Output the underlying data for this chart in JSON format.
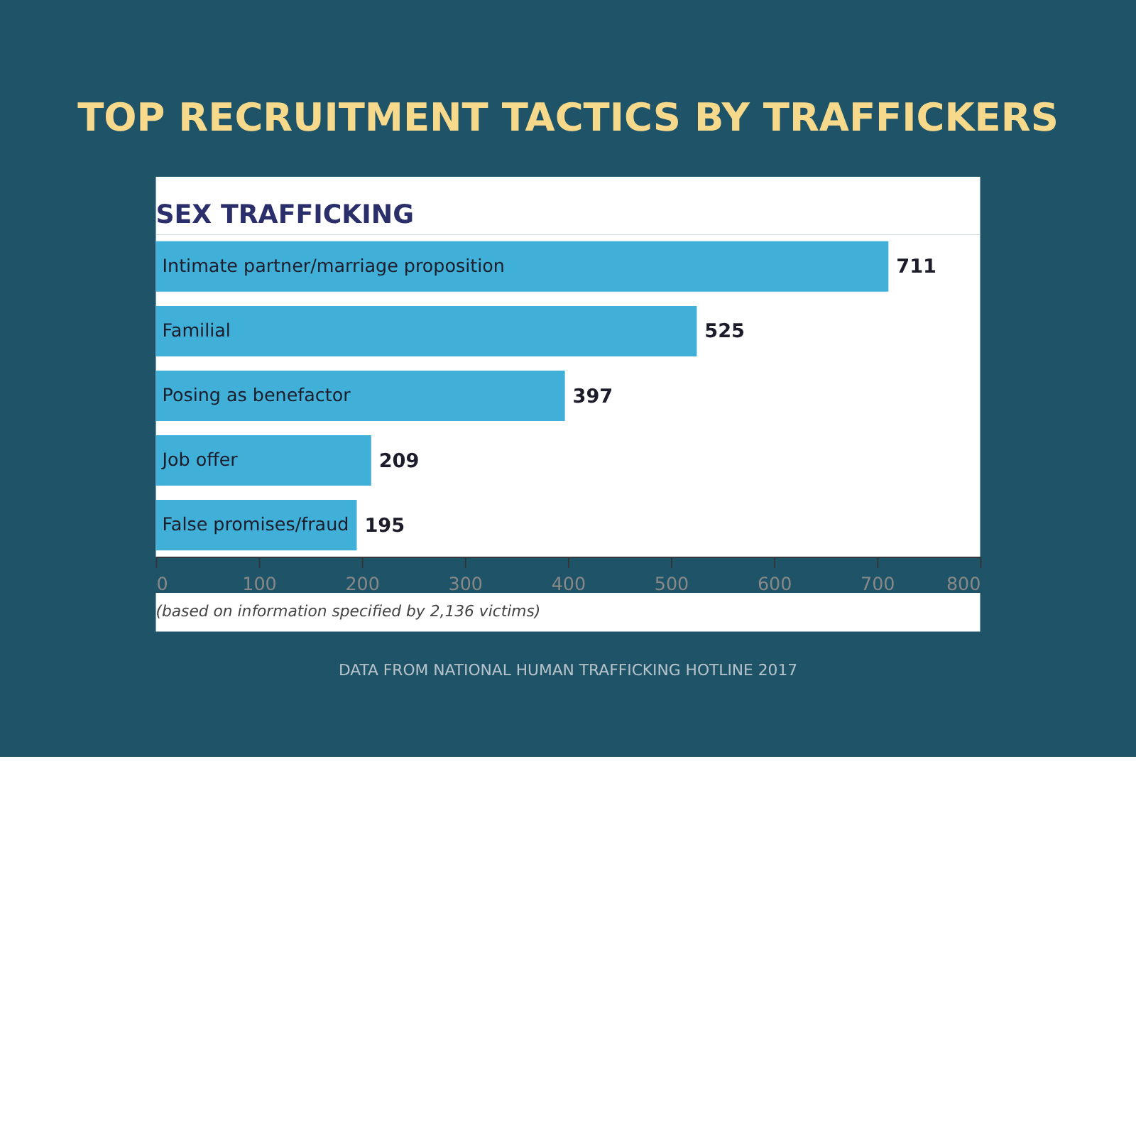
{
  "chart_data": {
    "type": "bar",
    "orientation": "horizontal",
    "title": "TOP RECRUITMENT TACTICS BY TRAFFICKERS",
    "subtitle": "SEX TRAFFICKING",
    "categories": [
      "Intimate partner/marriage proposition",
      "Familial",
      "Posing as benefactor",
      "Job offer",
      "False promises/fraud"
    ],
    "values": [
      711,
      525,
      397,
      209,
      195
    ],
    "color": "#41b0d8",
    "data_labels": true,
    "xlim": [
      0,
      800
    ],
    "xticks": [
      0,
      100,
      200,
      300,
      400,
      500,
      600,
      700,
      800
    ],
    "grid": false,
    "tick_labels": "x",
    "annotations": [
      "(based on information specified by 2,136 victims)",
      "DATA FROM NATIONAL HUMAN TRAFFICKING HOTLINE 2017"
    ]
  }
}
